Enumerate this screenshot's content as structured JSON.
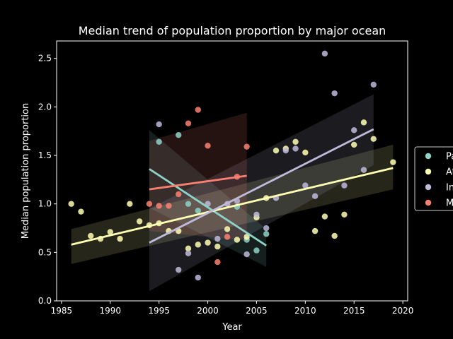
{
  "chart_data": {
    "type": "scatter",
    "title": "Median trend of population proportion by major ocean",
    "xlabel": "Year",
    "ylabel": "Median population proportion",
    "xlim": [
      1984.5,
      2020.5
    ],
    "ylim": [
      0.0,
      2.68
    ],
    "xticks": [
      1985,
      1990,
      1995,
      2000,
      2005,
      2010,
      2015,
      2020
    ],
    "yticks": [
      0.0,
      0.5,
      1.0,
      1.5,
      2.0,
      2.5
    ],
    "grid": false,
    "legend_position": "right",
    "series": [
      {
        "name": "Pacific",
        "color": "#8dd3c7",
        "points": [
          [
            1995,
            1.64
          ],
          [
            1997,
            1.71
          ],
          [
            1998,
            1.0
          ],
          [
            1999,
            0.93
          ],
          [
            2003,
            0.97
          ],
          [
            2004,
            0.63
          ],
          [
            2005,
            0.52
          ],
          [
            2006,
            0.69
          ]
        ],
        "trend": {
          "x": [
            1994,
            2006
          ],
          "y": [
            1.36,
            0.57
          ],
          "ci_upper": [
            1.76,
            0.74
          ],
          "ci_lower": [
            0.96,
            0.35
          ]
        }
      },
      {
        "name": "Atlantic",
        "color": "#ffffb3",
        "points": [
          [
            1986,
            1.0
          ],
          [
            1987,
            0.92
          ],
          [
            1988,
            0.67
          ],
          [
            1989,
            0.64
          ],
          [
            1990,
            0.71
          ],
          [
            1991,
            0.64
          ],
          [
            1992,
            1.0
          ],
          [
            1993,
            0.82
          ],
          [
            1994,
            0.78
          ],
          [
            1995,
            0.8
          ],
          [
            1996,
            0.72
          ],
          [
            1997,
            0.72
          ],
          [
            1998,
            0.54
          ],
          [
            1999,
            0.58
          ],
          [
            2000,
            0.6
          ],
          [
            2001,
            0.56
          ],
          [
            2002,
            0.74
          ],
          [
            2003,
            0.63
          ],
          [
            2004,
            0.66
          ],
          [
            2005,
            0.86
          ],
          [
            2006,
            1.06
          ],
          [
            2007,
            1.55
          ],
          [
            2008,
            1.57
          ],
          [
            2009,
            1.64
          ],
          [
            2010,
            1.53
          ],
          [
            2011,
            0.72
          ],
          [
            2012,
            0.87
          ],
          [
            2013,
            0.67
          ],
          [
            2014,
            0.89
          ],
          [
            2015,
            1.61
          ],
          [
            2016,
            1.84
          ],
          [
            2017,
            1.67
          ],
          [
            2019,
            1.43
          ]
        ],
        "trend": {
          "x": [
            1986,
            2019
          ],
          "y": [
            0.58,
            1.37
          ],
          "ci_upper": [
            0.74,
            1.61
          ],
          "ci_lower": [
            0.38,
            1.15
          ]
        }
      },
      {
        "name": "Indian",
        "color": "#bebada",
        "points": [
          [
            1995,
            1.82
          ],
          [
            1997,
            0.32
          ],
          [
            1998,
            0.49
          ],
          [
            1999,
            0.24
          ],
          [
            2000,
            1.0
          ],
          [
            2001,
            0.64
          ],
          [
            2002,
            1.0
          ],
          [
            2003,
            1.03
          ],
          [
            2004,
            0.48
          ],
          [
            2005,
            0.89
          ],
          [
            2006,
            0.75
          ],
          [
            2007,
            1.06
          ],
          [
            2008,
            1.55
          ],
          [
            2009,
            1.57
          ],
          [
            2010,
            1.19
          ],
          [
            2011,
            1.08
          ],
          [
            2012,
            2.55
          ],
          [
            2013,
            2.14
          ],
          [
            2014,
            1.19
          ],
          [
            2015,
            1.76
          ],
          [
            2016,
            1.35
          ],
          [
            2017,
            2.23
          ]
        ],
        "trend": {
          "x": [
            1994,
            2017
          ],
          "y": [
            0.6,
            1.77
          ],
          "ci_upper": [
            0.95,
            2.13
          ],
          "ci_lower": [
            0.1,
            1.4
          ]
        }
      },
      {
        "name": "M",
        "color": "#fb8072",
        "points": [
          [
            1994,
            1.0
          ],
          [
            1995,
            0.98
          ],
          [
            1996,
            0.98
          ],
          [
            1997,
            1.1
          ],
          [
            1998,
            1.83
          ],
          [
            1999,
            1.97
          ],
          [
            2000,
            1.6
          ],
          [
            2001,
            0.4
          ],
          [
            2002,
            0.66
          ],
          [
            2003,
            1.28
          ],
          [
            2004,
            1.59
          ]
        ],
        "trend": {
          "x": [
            1994,
            2004
          ],
          "y": [
            1.15,
            1.29
          ],
          "ci_upper": [
            1.65,
            1.94
          ],
          "ci_lower": [
            0.72,
            0.62
          ]
        }
      }
    ]
  }
}
